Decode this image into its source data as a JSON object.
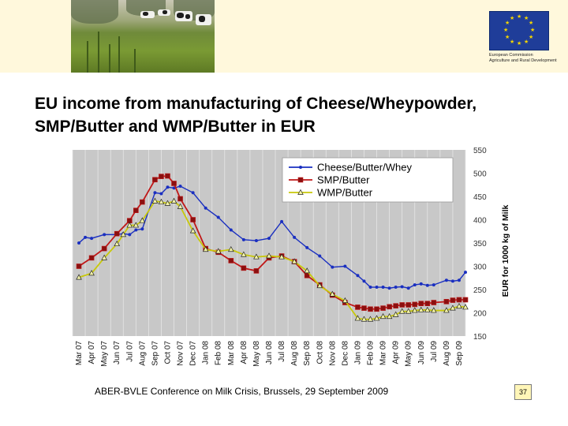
{
  "header": {
    "logo_caption_lines": [
      "European Commission",
      "Agriculture and Rural Development"
    ],
    "photo_icon": "cows-pasture-photo",
    "logo_icon": "eu-flag-icon"
  },
  "slide": {
    "title_lines": [
      "EU income from manufacturing of Cheese/Wheypowder,",
      "SMP/Butter and WMP/Butter in EUR"
    ]
  },
  "footer": {
    "text": "ABER-BVLE Conference on Milk Crisis, Brussels, 29 September 2009",
    "page_number": "37"
  },
  "colors": {
    "plot_bg": "#c8c8c8",
    "cheese": "#1a2fc0",
    "smp": "#c01818",
    "wmp": "#c8c80a",
    "marker_fill_smp": "#8b1010"
  },
  "chart_data": {
    "type": "line",
    "title": "",
    "xlabel": "",
    "ylabel": "EUR for 1000 kg of Milk",
    "ylim": [
      150,
      550
    ],
    "yticks": [
      150,
      200,
      250,
      300,
      350,
      400,
      450,
      500,
      550
    ],
    "grid": "vertical",
    "legend_position": "top-center",
    "categories": [
      "Mar 07",
      "Apr 07",
      "May 07",
      "Jun 07",
      "Jul 07",
      "Aug 07",
      "Sep 07",
      "Oct 07",
      "Nov 07",
      "Dec 07",
      "Jan 08",
      "Feb 08",
      "Mar 08",
      "Apr 08",
      "May 08",
      "Jun 08",
      "Jul 08",
      "Aug 08",
      "Sep 08",
      "Oct 08",
      "Nov 08",
      "Dec 08",
      "Jan 09",
      "Feb 09",
      "Mar 09",
      "Apr 09",
      "May 09",
      "Jun 09",
      "Jul 09",
      "Aug 09",
      "Sep 09"
    ],
    "series": [
      {
        "name": "Cheese/Butter/Whey",
        "marker": "dot",
        "points": [
          [
            0,
            350
          ],
          [
            0.5,
            362
          ],
          [
            1,
            360
          ],
          [
            2,
            368
          ],
          [
            3,
            368
          ],
          [
            3.5,
            370
          ],
          [
            4,
            368
          ],
          [
            4.5,
            378
          ],
          [
            5,
            380
          ],
          [
            6,
            458
          ],
          [
            6.5,
            456
          ],
          [
            7,
            470
          ],
          [
            7.5,
            468
          ],
          [
            8,
            472
          ],
          [
            9,
            458
          ],
          [
            10,
            425
          ],
          [
            11,
            405
          ],
          [
            12,
            378
          ],
          [
            13,
            357
          ],
          [
            14,
            355
          ],
          [
            15,
            360
          ],
          [
            16,
            396
          ],
          [
            17,
            362
          ],
          [
            18,
            340
          ],
          [
            19,
            322
          ],
          [
            20,
            298
          ],
          [
            21,
            300
          ],
          [
            22,
            280
          ],
          [
            22.5,
            268
          ],
          [
            23,
            255
          ],
          [
            23.5,
            255
          ],
          [
            24,
            255
          ],
          [
            24.5,
            253
          ],
          [
            25,
            255
          ],
          [
            25.5,
            256
          ],
          [
            26,
            253
          ],
          [
            26.5,
            260
          ],
          [
            27,
            262
          ],
          [
            27.5,
            259
          ],
          [
            28,
            260
          ],
          [
            29,
            270
          ],
          [
            29.5,
            268
          ],
          [
            30,
            270
          ],
          [
            30.5,
            287
          ]
        ]
      },
      {
        "name": "SMP/Butter",
        "marker": "square",
        "points": [
          [
            0,
            300
          ],
          [
            1,
            318
          ],
          [
            2,
            338
          ],
          [
            3,
            370
          ],
          [
            4,
            398
          ],
          [
            4.5,
            420
          ],
          [
            5,
            438
          ],
          [
            6,
            486
          ],
          [
            6.5,
            493
          ],
          [
            7,
            494
          ],
          [
            7.5,
            478
          ],
          [
            8,
            445
          ],
          [
            9,
            400
          ],
          [
            10,
            338
          ],
          [
            11,
            330
          ],
          [
            12,
            312
          ],
          [
            13,
            296
          ],
          [
            14,
            290
          ],
          [
            15,
            318
          ],
          [
            16,
            322
          ],
          [
            17,
            310
          ],
          [
            18,
            280
          ],
          [
            19,
            260
          ],
          [
            20,
            238
          ],
          [
            21,
            222
          ],
          [
            22,
            212
          ],
          [
            22.5,
            210
          ],
          [
            23,
            208
          ],
          [
            23.5,
            208
          ],
          [
            24,
            210
          ],
          [
            24.5,
            213
          ],
          [
            25,
            215
          ],
          [
            25.5,
            217
          ],
          [
            26,
            217
          ],
          [
            26.5,
            218
          ],
          [
            27,
            220
          ],
          [
            27.5,
            220
          ],
          [
            28,
            222
          ],
          [
            29,
            224
          ],
          [
            29.5,
            227
          ],
          [
            30,
            228
          ],
          [
            30.5,
            228
          ]
        ]
      },
      {
        "name": "WMP/Butter",
        "marker": "triangle",
        "points": [
          [
            0,
            276
          ],
          [
            1,
            285
          ],
          [
            2,
            318
          ],
          [
            3,
            348
          ],
          [
            3.5,
            368
          ],
          [
            4,
            388
          ],
          [
            4.5,
            388
          ],
          [
            5,
            398
          ],
          [
            6,
            440
          ],
          [
            6.5,
            438
          ],
          [
            7,
            435
          ],
          [
            7.5,
            440
          ],
          [
            8,
            428
          ],
          [
            9,
            376
          ],
          [
            10,
            336
          ],
          [
            11,
            332
          ],
          [
            12,
            336
          ],
          [
            13,
            325
          ],
          [
            14,
            320
          ],
          [
            15,
            322
          ],
          [
            16,
            320
          ],
          [
            17,
            310
          ],
          [
            18,
            290
          ],
          [
            19,
            258
          ],
          [
            20,
            240
          ],
          [
            21,
            226
          ],
          [
            22,
            188
          ],
          [
            22.5,
            186
          ],
          [
            23,
            186
          ],
          [
            23.5,
            188
          ],
          [
            24,
            192
          ],
          [
            24.5,
            192
          ],
          [
            25,
            196
          ],
          [
            25.5,
            203
          ],
          [
            26,
            203
          ],
          [
            26.5,
            205
          ],
          [
            27,
            206
          ],
          [
            27.5,
            206
          ],
          [
            28,
            205
          ],
          [
            29,
            205
          ],
          [
            29.5,
            210
          ],
          [
            30,
            214
          ],
          [
            30.5,
            212
          ]
        ]
      }
    ]
  }
}
